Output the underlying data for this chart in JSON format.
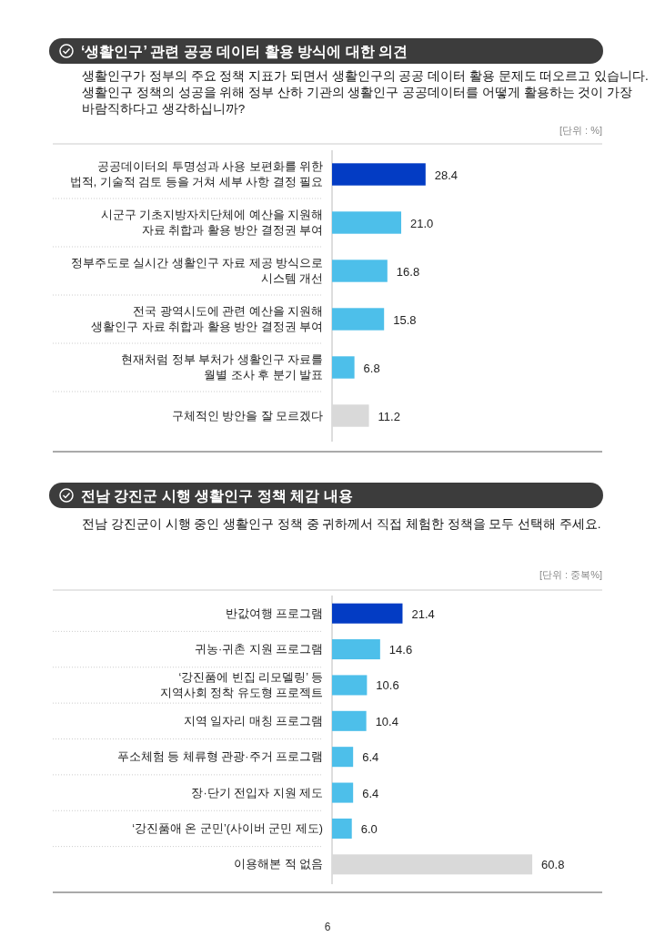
{
  "chart_data": [
    {
      "type": "bar",
      "orientation": "horizontal",
      "title": "‘생활인구’ 관련 공공 데이터 활용 방식에 대한 의견",
      "subtitle": "생활인구가 정부의 주요 정책 지표가 되면서 생활인구의 공공 데이터 활용 문제도 떠오르고 있습니다.\n생활인구 정책의 성공을 위해 정부 산하 기관의 생활인구 공공데이터를 어떻게 활용하는 것이 가장\n바람직하다고 생각하십니까?",
      "annotations": [
        "[단위 : %]"
      ],
      "categories": [
        "공공데이터의 투명성과 사용 보편화를 위한\n법적, 기술적 검토 등을 거쳐 세부 사항 결정 필요",
        "시군구 기초지방자치단체에 예산을 지원해\n자료 취합과 활용 방안 결정권 부여",
        "정부주도로 실시간 생활인구 자료 제공 방식으로\n시스템 개선",
        "전국 광역시도에 관련 예산을 지원해\n생활인구 자료 취합과 활용 방안 결정권 부여",
        "현재처럼 정부 부처가 생활인구 자료를\n월별 조사 후 분기 발표",
        "구체적인 방안을 잘 모르겠다"
      ],
      "values": [
        28.4,
        21.0,
        16.8,
        15.8,
        6.8,
        11.2
      ],
      "colors": [
        "#033cc4",
        "#4dbfea",
        "#4dbfea",
        "#4dbfea",
        "#4dbfea",
        "#d9d9d9"
      ],
      "value_labels": [
        "28.4",
        "21.0",
        "16.8",
        "15.8",
        "6.8",
        "11.2"
      ]
    },
    {
      "type": "bar",
      "orientation": "horizontal",
      "title": "전남 강진군 시행 생활인구 정책 체감 내용",
      "subtitle": "전남 강진군이 시행 중인 생활인구 정책 중 귀하께서 직접 체험한 정책을 모두 선택해 주세요.",
      "annotations": [
        "[단위 : 중복%]",
        "6"
      ],
      "categories": [
        "반값여행 프로그램",
        "귀농·귀촌 지원 프로그램",
        "‘강진품에 빈집 리모델링’ 등\n지역사회 정착 유도형 프로젝트",
        "지역 일자리 매칭 프로그램",
        "푸소체험 등 체류형 관광·주거 프로그램",
        "장·단기 전입자 지원 제도",
        "‘강진품애 온 군민’(사이버 군민 제도)",
        "이용해본 적 없음"
      ],
      "values": [
        21.4,
        14.6,
        10.6,
        10.4,
        6.4,
        6.4,
        6.0,
        60.8
      ],
      "colors": [
        "#033cc4",
        "#4dbfea",
        "#4dbfea",
        "#4dbfea",
        "#4dbfea",
        "#4dbfea",
        "#4dbfea",
        "#d9d9d9"
      ],
      "value_labels": [
        "21.4",
        "14.6",
        "10.6",
        "10.4",
        "6.4",
        "6.4",
        "6.0",
        "60.8"
      ]
    }
  ]
}
